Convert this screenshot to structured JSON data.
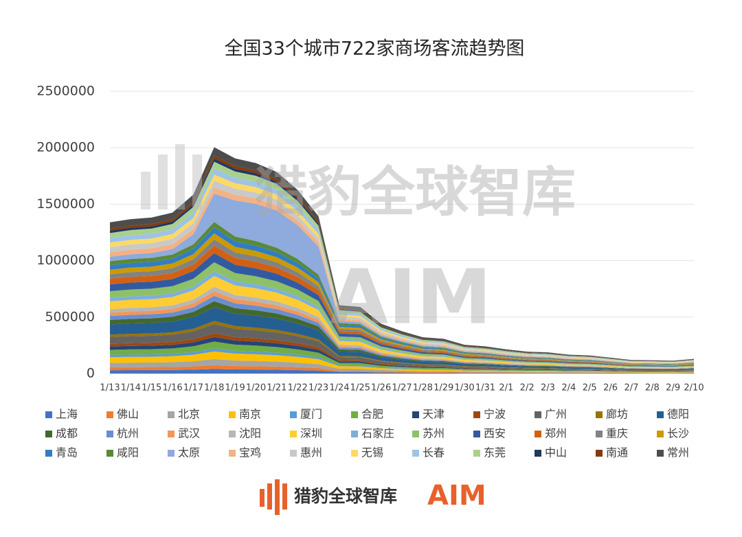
{
  "chart_data": {
    "type": "stacked_area",
    "title": "全国33个城市722家商场客流趋势图",
    "categories": [
      "1/13",
      "1/14",
      "1/15",
      "1/16",
      "1/17",
      "1/18",
      "1/19",
      "1/20",
      "1/21",
      "1/22",
      "1/23",
      "1/24",
      "1/25",
      "1/26",
      "1/27",
      "1/28",
      "1/29",
      "1/30",
      "1/31",
      "2/1",
      "2/2",
      "2/3",
      "2/4",
      "2/5",
      "2/6",
      "2/7",
      "2/8",
      "2/9",
      "2/10"
    ],
    "ylim": [
      0,
      2500000
    ],
    "yticks": [
      0,
      500000,
      1000000,
      1500000,
      2000000,
      2500000
    ],
    "grid": true,
    "legend": "bottom",
    "series": [
      {
        "name": "上海",
        "color": "#4472c4",
        "values": [
          30000,
          30600,
          30900,
          31800,
          34500,
          40500,
          36600,
          35400,
          33600,
          30600,
          26400,
          13500,
          13200,
          9900,
          8400,
          7200,
          6900,
          5700,
          5400,
          4800,
          4350,
          4200,
          3750,
          3600,
          3150,
          2700,
          2640,
          2550,
          2910
        ]
      },
      {
        "name": "佛山",
        "color": "#ed7d31",
        "values": [
          25000,
          25500,
          25750,
          26500,
          28750,
          33750,
          30500,
          29500,
          28000,
          25500,
          22000,
          11250,
          11000,
          8250,
          7000,
          6000,
          5750,
          4750,
          4500,
          4000,
          3625,
          3500,
          3125,
          3000,
          2625,
          2250,
          2200,
          2125,
          2425
        ]
      },
      {
        "name": "北京",
        "color": "#a5a5a5",
        "values": [
          40000,
          40800,
          41200,
          42400,
          46000,
          54000,
          48800,
          47200,
          44800,
          40800,
          35200,
          18000,
          17600,
          13200,
          11200,
          9600,
          9200,
          7600,
          7200,
          6400,
          5800,
          5600,
          5000,
          4800,
          4200,
          3600,
          3520,
          3400,
          3880
        ]
      },
      {
        "name": "南京",
        "color": "#ffc000",
        "values": [
          50000,
          51000,
          51500,
          53000,
          57500,
          67500,
          61000,
          59000,
          56000,
          51000,
          44000,
          22500,
          22000,
          16500,
          14000,
          12000,
          11500,
          9500,
          9000,
          8000,
          7250,
          7000,
          6250,
          6000,
          5250,
          4500,
          4400,
          4250,
          4850
        ]
      },
      {
        "name": "厦门",
        "color": "#5b9bd5",
        "values": [
          20000,
          20400,
          20600,
          21200,
          23000,
          27000,
          24400,
          23600,
          22400,
          20400,
          17600,
          9000,
          8800,
          6600,
          5600,
          4800,
          4600,
          3800,
          3600,
          3200,
          2900,
          2800,
          2500,
          2400,
          2100,
          1800,
          1760,
          1700,
          1940
        ]
      },
      {
        "name": "合肥",
        "color": "#70ad47",
        "values": [
          45000,
          45900,
          46350,
          47700,
          51750,
          60750,
          54900,
          53100,
          50400,
          45900,
          39600,
          20250,
          19800,
          14850,
          12600,
          10800,
          10350,
          8550,
          8100,
          7200,
          6525,
          6300,
          5625,
          5400,
          4725,
          4050,
          3960,
          3825,
          4365
        ]
      },
      {
        "name": "天津",
        "color": "#264478",
        "values": [
          30000,
          30600,
          30900,
          31800,
          34500,
          40500,
          36600,
          35400,
          33600,
          30600,
          26400,
          13500,
          13200,
          9900,
          8400,
          7200,
          6900,
          5700,
          5400,
          4800,
          4350,
          4200,
          3750,
          3600,
          3150,
          2700,
          2640,
          2550,
          2910
        ]
      },
      {
        "name": "宁波",
        "color": "#9e480e",
        "values": [
          25000,
          25500,
          25750,
          26500,
          28750,
          33750,
          30500,
          29500,
          28000,
          25500,
          22000,
          11250,
          11000,
          8250,
          7000,
          6000,
          5750,
          4750,
          4500,
          4000,
          3625,
          3500,
          3125,
          3000,
          2625,
          2250,
          2200,
          2125,
          2425
        ]
      },
      {
        "name": "广州",
        "color": "#636363",
        "values": [
          60000,
          61200,
          61800,
          63600,
          69000,
          81000,
          73200,
          70800,
          67200,
          61200,
          52800,
          27000,
          26400,
          19800,
          16800,
          14400,
          13800,
          11400,
          10800,
          9600,
          8700,
          8400,
          7500,
          7200,
          6300,
          5400,
          5280,
          5100,
          5820
        ]
      },
      {
        "name": "廊坊",
        "color": "#997300",
        "values": [
          20000,
          20400,
          20600,
          21200,
          23000,
          27000,
          24400,
          23600,
          22400,
          20400,
          17600,
          9000,
          8800,
          6600,
          5600,
          4800,
          4600,
          3800,
          3600,
          3200,
          2900,
          2800,
          2500,
          2400,
          2100,
          1800,
          1760,
          1700,
          1940
        ]
      },
      {
        "name": "德阳",
        "color": "#255e91",
        "values": [
          90000,
          91800,
          92700,
          95400,
          103500,
          121500,
          109800,
          106200,
          100800,
          91800,
          79200,
          40500,
          39600,
          29700,
          25200,
          21600,
          20700,
          17100,
          16200,
          14400,
          13050,
          12600,
          11250,
          10800,
          9450,
          8100,
          7920,
          7650,
          8730
        ]
      },
      {
        "name": "成都",
        "color": "#43682b",
        "values": [
          40000,
          40800,
          41200,
          42400,
          46000,
          54000,
          48800,
          47200,
          44800,
          40800,
          35200,
          18000,
          17600,
          13200,
          11200,
          9600,
          9200,
          7600,
          7200,
          6400,
          5800,
          5600,
          5000,
          4800,
          4200,
          3600,
          3520,
          3400,
          3880
        ]
      },
      {
        "name": "杭州",
        "color": "#698ed0",
        "values": [
          35000,
          35700,
          36050,
          37100,
          40250,
          47250,
          42700,
          41300,
          39200,
          35700,
          30800,
          15750,
          15400,
          11550,
          9800,
          8400,
          8050,
          6650,
          6300,
          5600,
          5075,
          4900,
          4375,
          4200,
          3675,
          3150,
          3080,
          2975,
          3395
        ]
      },
      {
        "name": "武汉",
        "color": "#f1975a",
        "values": [
          30000,
          30600,
          30900,
          31800,
          34500,
          40500,
          36600,
          35400,
          33600,
          30600,
          26400,
          13500,
          13200,
          9900,
          8400,
          7200,
          6900,
          5700,
          5400,
          4800,
          4350,
          4200,
          3750,
          3600,
          3150,
          2700,
          2640,
          2550,
          2910
        ]
      },
      {
        "name": "沈阳",
        "color": "#b7b7b7",
        "values": [
          30000,
          30600,
          30900,
          31800,
          34500,
          40500,
          36600,
          35400,
          33600,
          30600,
          26400,
          13500,
          13200,
          9900,
          8400,
          7200,
          6900,
          5700,
          5400,
          4800,
          4350,
          4200,
          3750,
          3600,
          3150,
          2700,
          2640,
          2550,
          2910
        ]
      },
      {
        "name": "深圳",
        "color": "#ffcd33",
        "values": [
          70000,
          71400,
          72100,
          74200,
          80500,
          94500,
          85400,
          82600,
          78400,
          71400,
          61600,
          31500,
          30800,
          23100,
          19600,
          16800,
          16100,
          13300,
          12600,
          11200,
          10150,
          9800,
          8750,
          8400,
          7350,
          6300,
          6160,
          5950,
          6790
        ]
      },
      {
        "name": "石家庄",
        "color": "#7cafdd",
        "values": [
          30000,
          30600,
          30900,
          31800,
          34500,
          40500,
          36600,
          35400,
          33600,
          30600,
          26400,
          13500,
          13200,
          9900,
          8400,
          7200,
          6900,
          5700,
          5400,
          4800,
          4350,
          4200,
          3750,
          3600,
          3150,
          2700,
          2640,
          2550,
          2910
        ]
      },
      {
        "name": "苏州",
        "color": "#8cc168",
        "values": [
          60000,
          61200,
          61800,
          63600,
          69000,
          81000,
          73200,
          70800,
          67200,
          61200,
          52800,
          27000,
          26400,
          19800,
          16800,
          14400,
          13800,
          11400,
          10800,
          9600,
          8700,
          8400,
          7500,
          7200,
          6300,
          5400,
          5280,
          5100,
          5820
        ]
      },
      {
        "name": "西安",
        "color": "#335aa1",
        "values": [
          60000,
          61200,
          61800,
          63600,
          69000,
          81000,
          73200,
          70800,
          67200,
          61200,
          52800,
          27000,
          26400,
          19800,
          16800,
          14400,
          13800,
          11400,
          10800,
          9600,
          8700,
          8400,
          7500,
          7200,
          6300,
          5400,
          5280,
          5100,
          5820
        ]
      },
      {
        "name": "郑州",
        "color": "#d26012",
        "values": [
          50000,
          51000,
          51500,
          53000,
          57500,
          67500,
          61000,
          59000,
          56000,
          51000,
          44000,
          22500,
          22000,
          16500,
          14000,
          12000,
          11500,
          9500,
          9000,
          8000,
          7250,
          7000,
          6250,
          6000,
          5250,
          4500,
          4400,
          4250,
          4850
        ]
      },
      {
        "name": "重庆",
        "color": "#828282",
        "values": [
          40000,
          40800,
          41200,
          42400,
          46000,
          54000,
          48800,
          47200,
          44800,
          40800,
          35200,
          18000,
          17600,
          13200,
          11200,
          9600,
          9200,
          7600,
          7200,
          6400,
          5800,
          5600,
          5000,
          4800,
          4200,
          3600,
          3520,
          3400,
          3880
        ]
      },
      {
        "name": "长沙",
        "color": "#cc9a00",
        "values": [
          40000,
          40800,
          41200,
          42400,
          46000,
          54000,
          48800,
          47200,
          44800,
          40800,
          35200,
          18000,
          17600,
          13200,
          11200,
          9600,
          9200,
          7600,
          7200,
          6400,
          5800,
          5600,
          5000,
          4800,
          4200,
          3600,
          3520,
          3400,
          3880
        ]
      },
      {
        "name": "青岛",
        "color": "#327dc2",
        "values": [
          40000,
          40800,
          41200,
          42400,
          46000,
          54000,
          48800,
          47200,
          44800,
          40800,
          35200,
          18000,
          17600,
          13200,
          11200,
          9600,
          9200,
          7600,
          7200,
          6400,
          5800,
          5600,
          5000,
          4800,
          4200,
          3600,
          3520,
          3400,
          3880
        ]
      },
      {
        "name": "咸阳",
        "color": "#5a8a39",
        "values": [
          35000,
          35700,
          36050,
          37100,
          40250,
          47250,
          42700,
          41300,
          39200,
          35700,
          30800,
          15750,
          15400,
          11550,
          9800,
          8400,
          8050,
          6650,
          6300,
          5600,
          5075,
          4900,
          4375,
          4200,
          3675,
          3150,
          3080,
          2975,
          3395
        ]
      },
      {
        "name": "太原",
        "color": "#8faadc",
        "values": [
          40000,
          42000,
          43000,
          48000,
          90000,
          250000,
          320000,
          330000,
          330000,
          300000,
          250000,
          20000,
          18000,
          13000,
          11000,
          9500,
          9000,
          7500,
          7000,
          6300,
          5700,
          5500,
          4900,
          4700,
          4100,
          3500,
          3400,
          3300,
          3800
        ]
      },
      {
        "name": "宝鸡",
        "color": "#f4b183",
        "values": [
          40000,
          40800,
          41200,
          42400,
          46000,
          54000,
          48800,
          47200,
          44800,
          40800,
          35200,
          18000,
          17600,
          13200,
          11200,
          9600,
          9200,
          7600,
          7200,
          6400,
          5800,
          5600,
          5000,
          4800,
          4200,
          3600,
          3520,
          3400,
          3880
        ]
      },
      {
        "name": "惠州",
        "color": "#c9c9c9",
        "values": [
          45000,
          45900,
          46350,
          47700,
          51750,
          60750,
          54900,
          53100,
          50400,
          45900,
          39600,
          20250,
          19800,
          14850,
          12600,
          10800,
          10350,
          8550,
          8100,
          7200,
          6525,
          6300,
          5625,
          5400,
          4725,
          4050,
          3960,
          3825,
          4365
        ]
      },
      {
        "name": "无锡",
        "color": "#ffd966",
        "values": [
          40000,
          40800,
          41200,
          42400,
          46000,
          54000,
          48800,
          47200,
          44800,
          40800,
          35200,
          18000,
          17600,
          13200,
          11200,
          9600,
          9200,
          7600,
          7200,
          6400,
          5800,
          5600,
          5000,
          4800,
          4200,
          3600,
          3520,
          3400,
          3880
        ]
      },
      {
        "name": "长春",
        "color": "#9dc3e6",
        "values": [
          40000,
          40800,
          41200,
          42400,
          46000,
          54000,
          48800,
          47200,
          44800,
          40800,
          35200,
          18000,
          17600,
          13200,
          11200,
          9600,
          9200,
          7600,
          7200,
          6400,
          5800,
          5600,
          5000,
          4800,
          4200,
          3600,
          3520,
          3400,
          3880
        ]
      },
      {
        "name": "东莞",
        "color": "#a9d18e",
        "values": [
          45000,
          45900,
          46350,
          47700,
          51750,
          60750,
          54900,
          53100,
          50400,
          45900,
          39600,
          20250,
          19800,
          14850,
          12600,
          10800,
          10350,
          8550,
          8100,
          7200,
          6525,
          6300,
          5625,
          5400,
          4725,
          4050,
          3960,
          3825,
          4365
        ]
      },
      {
        "name": "中山",
        "color": "#1f3864",
        "values": [
          20000,
          20400,
          20600,
          21200,
          23000,
          27000,
          24400,
          23600,
          22400,
          20400,
          17600,
          9000,
          8800,
          6600,
          5600,
          4800,
          4600,
          3800,
          3600,
          3200,
          2900,
          2800,
          2500,
          2400,
          2100,
          1800,
          1760,
          1700,
          1940
        ]
      },
      {
        "name": "南通",
        "color": "#843c0c",
        "values": [
          20000,
          20400,
          20600,
          21200,
          23000,
          27000,
          24400,
          23600,
          22400,
          20400,
          17600,
          9000,
          8800,
          6600,
          5600,
          4800,
          4600,
          3800,
          3600,
          3200,
          2900,
          2800,
          2500,
          2400,
          2100,
          1800,
          1760,
          1700,
          1940
        ]
      },
      {
        "name": "常州",
        "color": "#4d4d4d",
        "values": [
          55000,
          56100,
          56650,
          58300,
          63250,
          74250,
          67100,
          64900,
          61600,
          56100,
          48400,
          24750,
          24200,
          18150,
          15400,
          13200,
          12650,
          10450,
          9900,
          8800,
          7975,
          7700,
          6875,
          6600,
          5775,
          4950,
          4840,
          4675,
          5335
        ]
      }
    ]
  },
  "branding": {
    "watermark": "猎豹全球智库",
    "logo_text": "猎豹全球智库",
    "logo_mark": "AIM"
  }
}
